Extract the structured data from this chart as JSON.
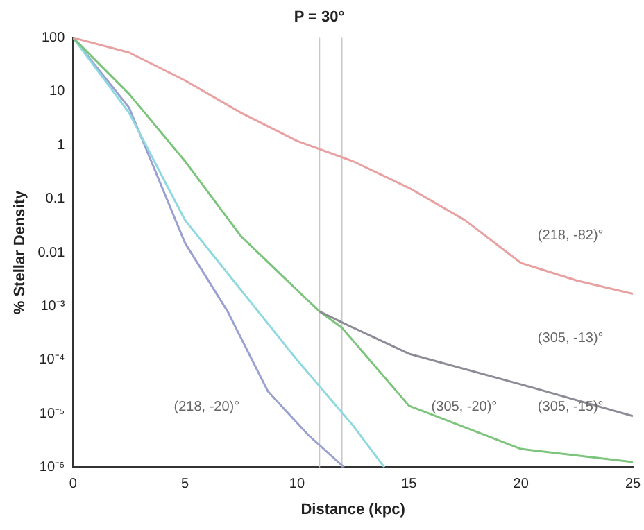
{
  "chart_data": {
    "type": "line",
    "title": "P = 30°",
    "xlabel": "Distance (kpc)",
    "ylabel": "% Stellar Density",
    "log": "y",
    "grid": false,
    "legend": false,
    "marker": "none",
    "line_style": "solid",
    "xlim": [
      0,
      25
    ],
    "xticks": [
      0,
      5,
      10,
      15,
      20,
      25
    ],
    "ylim": [
      1e-06,
      100
    ],
    "yticks": [
      100,
      10,
      1,
      0.1,
      0.01,
      {
        "value": 0.001,
        "label": "10⁻³"
      },
      {
        "value": 0.0001,
        "label": "10⁻⁴"
      },
      {
        "value": 1e-05,
        "label": "10⁻⁵"
      },
      {
        "value": 1e-06,
        "label": "10⁻⁶"
      }
    ],
    "series": [
      {
        "color": "#e8a0a0",
        "x": [
          0,
          2.5,
          5,
          7.5,
          10,
          12.5,
          15,
          17.5,
          20,
          22.5,
          25
        ],
        "values": [
          100,
          53,
          16,
          4,
          1.2,
          0.5,
          0.16,
          0.04,
          0.0064,
          0.003,
          0.0017
        ]
      },
      {
        "color": "#8c8c96",
        "x": [
          11,
          12,
          15,
          20,
          25
        ],
        "values": [
          0.0008,
          0.0005,
          0.00013,
          3.5e-05,
          9e-06
        ]
      },
      {
        "color": "#7cc47c",
        "x": [
          0,
          2.5,
          5,
          7.5,
          10,
          11,
          12,
          15,
          20,
          25
        ],
        "values": [
          100,
          9,
          0.5,
          0.02,
          0.002,
          0.0008,
          0.0004,
          1.4e-05,
          2.2e-06,
          1.25e-06
        ]
      },
      {
        "color": "#8ed8e0",
        "x": [
          0,
          2.5,
          5,
          7.5,
          10,
          12.5,
          13.9
        ],
        "values": [
          100,
          4,
          0.04,
          0.002,
          0.0001,
          6e-06,
          1e-06
        ]
      },
      {
        "color": "#9aa0d0",
        "x": [
          0,
          2.5,
          5,
          6.9,
          8.7,
          10.5,
          12.1
        ],
        "values": [
          100,
          5,
          0.015,
          0.0008,
          2.6e-05,
          4e-06,
          1e-06
        ]
      }
    ],
    "ref_lines": [
      {
        "axis": "x",
        "value": 11,
        "color": "#c8c8c8"
      },
      {
        "axis": "x",
        "value": 12,
        "color": "#c8c8c8"
      }
    ],
    "annotations": [
      "(218, -82)°",
      "(305, -13)°",
      "(305, -15)°",
      "(305, -20)°",
      "(218, -20)°"
    ]
  }
}
